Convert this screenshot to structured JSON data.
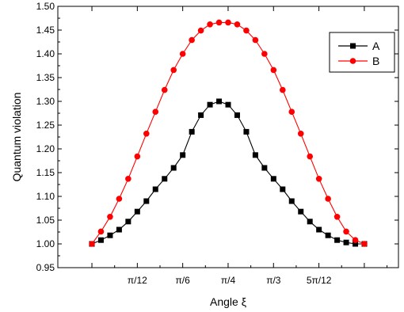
{
  "chart_data": {
    "type": "line",
    "xlabel": "Angle ξ",
    "ylabel": "Quantum violation",
    "xlim": [
      -0.125,
      1.125
    ],
    "ylim": [
      0.95,
      1.5
    ],
    "grid": false,
    "legend_placement": "top-right",
    "xticks": [
      {
        "value": 0.1667,
        "label": "π/12"
      },
      {
        "value": 0.3333,
        "label": "π/6"
      },
      {
        "value": 0.5,
        "label": "π/4"
      },
      {
        "value": 0.6667,
        "label": "π/3"
      },
      {
        "value": 0.8333,
        "label": "5π/12"
      }
    ],
    "yticks": [
      0.95,
      1.0,
      1.05,
      1.1,
      1.15,
      1.2,
      1.25,
      1.3,
      1.35,
      1.4,
      1.45,
      1.5
    ],
    "ytick_labels": [
      "0.95",
      "1.00",
      "1.05",
      "1.10",
      "1.15",
      "1.20",
      "1.25",
      "1.30",
      "1.35",
      "1.40",
      "1.45",
      "1.50"
    ],
    "x": [
      0,
      0.0333,
      0.0667,
      0.1,
      0.1333,
      0.1667,
      0.2,
      0.2333,
      0.2667,
      0.3,
      0.3333,
      0.3667,
      0.4,
      0.4333,
      0.4667,
      0.5,
      0.5333,
      0.5667,
      0.6,
      0.6333,
      0.6667,
      0.7,
      0.7333,
      0.7667,
      0.8,
      0.8333,
      0.8667,
      0.9,
      0.9333,
      0.9667,
      1
    ],
    "series": [
      {
        "name": "A",
        "color": "#000000",
        "marker": "square",
        "values": [
          1.0,
          1.008,
          1.018,
          1.03,
          1.047,
          1.068,
          1.09,
          1.115,
          1.137,
          1.16,
          1.187,
          1.236,
          1.271,
          1.293,
          1.3,
          1.293,
          1.271,
          1.236,
          1.187,
          1.16,
          1.137,
          1.115,
          1.09,
          1.068,
          1.047,
          1.03,
          1.018,
          1.008,
          1.003,
          1.0,
          1.0
        ]
      },
      {
        "name": "B",
        "color": "#ff0000",
        "marker": "circle",
        "values": [
          1.0,
          1.026,
          1.057,
          1.095,
          1.137,
          1.184,
          1.232,
          1.278,
          1.324,
          1.366,
          1.4,
          1.429,
          1.449,
          1.462,
          1.466,
          1.466,
          1.462,
          1.449,
          1.429,
          1.4,
          1.366,
          1.324,
          1.278,
          1.232,
          1.184,
          1.137,
          1.095,
          1.057,
          1.026,
          1.008,
          1.0
        ]
      }
    ]
  }
}
